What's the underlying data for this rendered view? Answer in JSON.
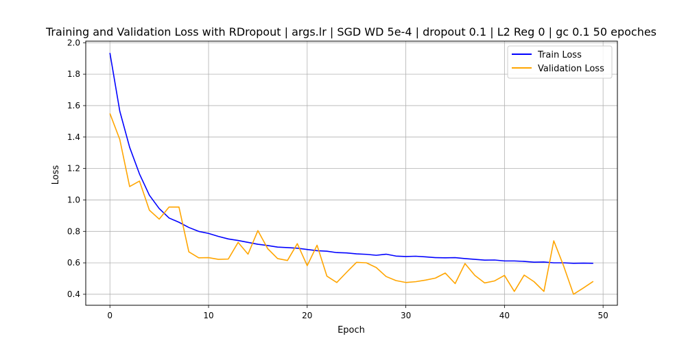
{
  "chart_data": {
    "type": "line",
    "title": "Training and Validation Loss with RDropout | args.lr | SGD WD 5e-4 | dropout 0.1 | L2 Reg 0 | gc 0.1 50 epoches",
    "xlabel": "Epoch",
    "ylabel": "Loss",
    "xlim": [
      -2.45,
      51.45
    ],
    "ylim": [
      0.33,
      2.01
    ],
    "xticks": [
      0,
      10,
      20,
      30,
      40,
      50
    ],
    "yticks": [
      0.4,
      0.6,
      0.8,
      1.0,
      1.2,
      1.4,
      1.6,
      1.8,
      2.0
    ],
    "ytick_labels": [
      "0.4",
      "0.6",
      "0.8",
      "1.0",
      "1.2",
      "1.4",
      "1.6",
      "1.8",
      "2.0"
    ],
    "grid": true,
    "legend_position": "upper right",
    "x": [
      0,
      1,
      2,
      3,
      4,
      5,
      6,
      7,
      8,
      9,
      10,
      11,
      12,
      13,
      14,
      15,
      16,
      17,
      18,
      19,
      20,
      21,
      22,
      23,
      24,
      25,
      26,
      27,
      28,
      29,
      30,
      31,
      32,
      33,
      34,
      35,
      36,
      37,
      38,
      39,
      40,
      41,
      42,
      43,
      44,
      45,
      46,
      47,
      48,
      49
    ],
    "series": [
      {
        "name": "Train Loss",
        "color": "#0000ff",
        "values": [
          1.935,
          1.565,
          1.335,
          1.165,
          1.03,
          0.945,
          0.885,
          0.858,
          0.825,
          0.8,
          0.787,
          0.768,
          0.752,
          0.742,
          0.73,
          0.718,
          0.71,
          0.7,
          0.697,
          0.693,
          0.685,
          0.677,
          0.674,
          0.665,
          0.663,
          0.657,
          0.654,
          0.648,
          0.655,
          0.643,
          0.64,
          0.642,
          0.638,
          0.633,
          0.632,
          0.633,
          0.627,
          0.622,
          0.617,
          0.618,
          0.612,
          0.612,
          0.609,
          0.604,
          0.605,
          0.6,
          0.6,
          0.597,
          0.598,
          0.597
        ]
      },
      {
        "name": "Validation Loss",
        "color": "#ffa500",
        "values": [
          1.55,
          1.385,
          1.085,
          1.12,
          0.935,
          0.878,
          0.955,
          0.955,
          0.67,
          0.632,
          0.633,
          0.622,
          0.624,
          0.73,
          0.655,
          0.805,
          0.69,
          0.627,
          0.615,
          0.722,
          0.582,
          0.712,
          0.515,
          0.475,
          0.54,
          0.603,
          0.6,
          0.57,
          0.513,
          0.487,
          0.475,
          0.48,
          0.49,
          0.503,
          0.535,
          0.468,
          0.595,
          0.52,
          0.472,
          0.485,
          0.52,
          0.418,
          0.522,
          0.48,
          0.418,
          0.74,
          0.58,
          0.4,
          0.44,
          0.482
        ]
      }
    ]
  }
}
